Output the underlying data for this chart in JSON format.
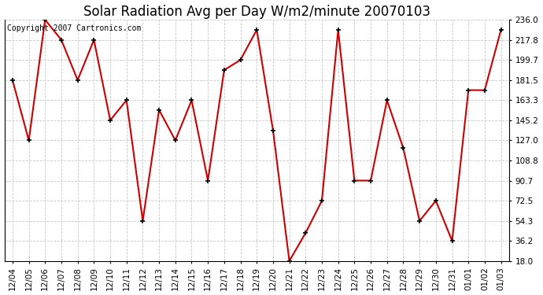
{
  "title": "Solar Radiation Avg per Day W/m2/minute 20070103",
  "copyright_text": "Copyright 2007 Cartronics.com",
  "labels": [
    "12/04",
    "12/05",
    "12/06",
    "12/07",
    "12/08",
    "12/09",
    "12/10",
    "12/11",
    "12/12",
    "12/13",
    "12/14",
    "12/15",
    "12/16",
    "12/17",
    "12/18",
    "12/19",
    "12/20",
    "12/21",
    "12/22",
    "12/23",
    "12/24",
    "12/25",
    "12/26",
    "12/27",
    "12/28",
    "12/29",
    "12/30",
    "12/31",
    "01/01",
    "01/02",
    "01/03"
  ],
  "values": [
    181.5,
    127.0,
    236.0,
    217.8,
    181.5,
    217.8,
    145.2,
    163.3,
    54.3,
    154.6,
    127.0,
    163.3,
    90.7,
    190.6,
    199.7,
    226.9,
    136.1,
    18.0,
    43.4,
    72.5,
    226.9,
    90.7,
    90.7,
    163.3,
    120.0,
    54.3,
    72.5,
    36.2,
    172.4,
    172.4,
    226.9
  ],
  "ylim": [
    18.0,
    236.0
  ],
  "yticks": [
    18.0,
    36.2,
    54.3,
    72.5,
    90.7,
    108.8,
    127.0,
    145.2,
    163.3,
    181.5,
    199.7,
    217.8,
    236.0
  ],
  "line_color": "#cc0000",
  "marker_color": "#000000",
  "bg_color": "#ffffff",
  "grid_color": "#c8c8c8",
  "title_fontsize": 12,
  "copyright_fontsize": 7,
  "tick_fontsize": 7.5
}
